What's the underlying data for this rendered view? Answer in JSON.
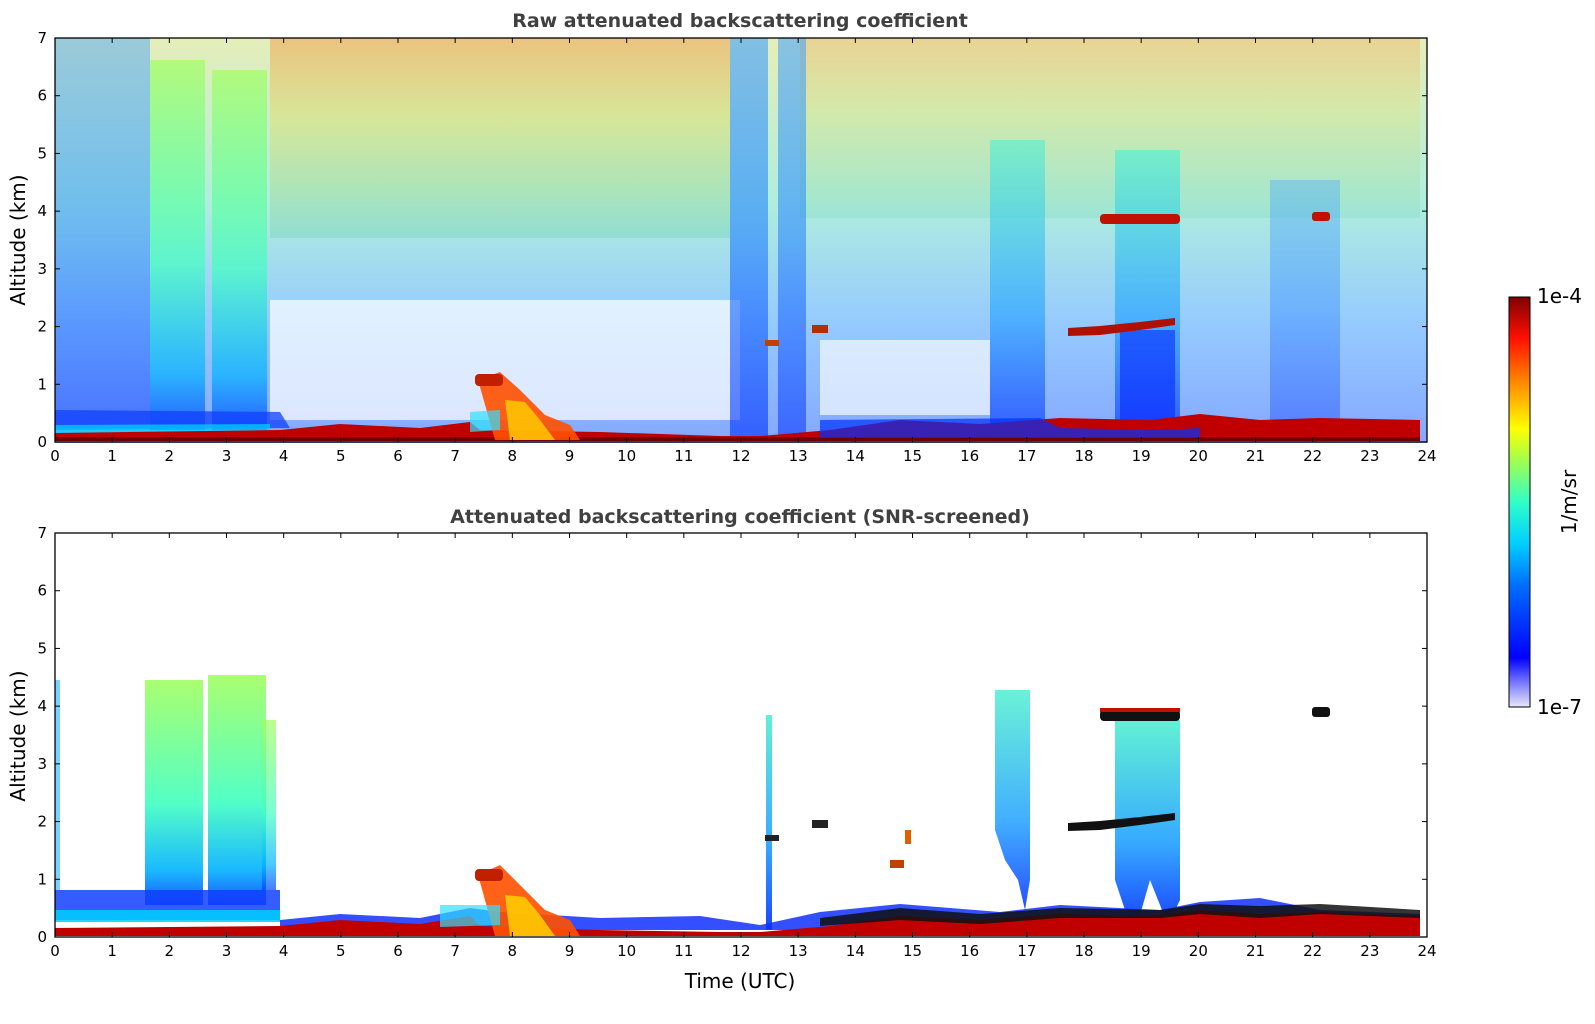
{
  "chart_data": [
    {
      "type": "heatmap",
      "title": "Raw attenuated backscattering coefficient",
      "xlabel": "",
      "ylabel": "Altitude (km)",
      "xlim": [
        0,
        24
      ],
      "ylim": [
        0,
        7
      ],
      "x_ticks": [
        "0",
        "1",
        "2",
        "3",
        "4",
        "5",
        "6",
        "7",
        "8",
        "9",
        "10",
        "11",
        "12",
        "13",
        "14",
        "15",
        "16",
        "17",
        "18",
        "19",
        "20",
        "21",
        "22",
        "23",
        "24"
      ],
      "y_ticks": [
        "0",
        "1",
        "2",
        "3",
        "4",
        "5",
        "6",
        "7"
      ],
      "grid": false
    },
    {
      "type": "heatmap",
      "title": "Attenuated backscattering coefficient (SNR-screened)",
      "xlabel": "Time (UTC)",
      "ylabel": "Altitude (km)",
      "xlim": [
        0,
        24
      ],
      "ylim": [
        0,
        7
      ],
      "x_ticks": [
        "0",
        "1",
        "2",
        "3",
        "4",
        "5",
        "6",
        "7",
        "8",
        "9",
        "10",
        "11",
        "12",
        "13",
        "14",
        "15",
        "16",
        "17",
        "18",
        "19",
        "20",
        "21",
        "22",
        "23",
        "24"
      ],
      "y_ticks": [
        "0",
        "1",
        "2",
        "3",
        "4",
        "5",
        "6",
        "7"
      ],
      "grid": false
    }
  ],
  "colorbar": {
    "label": "1/m/sr",
    "max_label": "1e-4",
    "min_label": "1e-7",
    "scale": "log",
    "colormap": "jet"
  }
}
